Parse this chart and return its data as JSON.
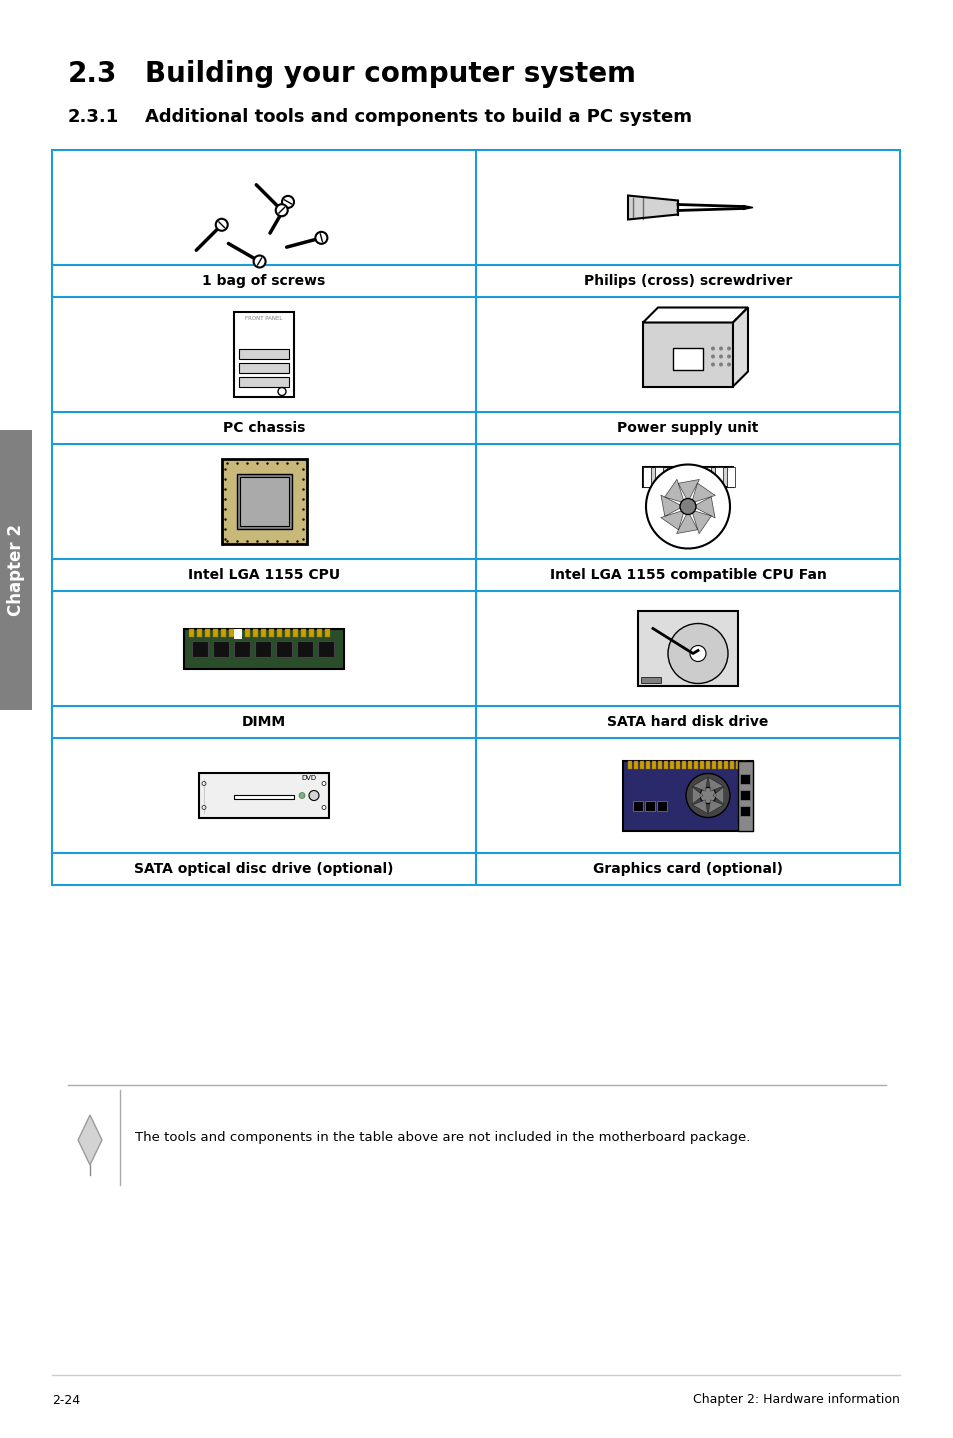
{
  "title_number": "2.3",
  "title_text": "Building your computer system",
  "subtitle_number": "2.3.1",
  "subtitle_text": "Additional tools and components to build a PC system",
  "table_border_color": "#1a9cd8",
  "table_items": [
    {
      "left_label": "1 bag of screws",
      "right_label": "Philips (cross) screwdriver"
    },
    {
      "left_label": "PC chassis",
      "right_label": "Power supply unit"
    },
    {
      "left_label": "Intel LGA 1155 CPU",
      "right_label": "Intel LGA 1155 compatible CPU Fan"
    },
    {
      "left_label": "DIMM",
      "right_label": "SATA hard disk drive"
    },
    {
      "left_label": "SATA optical disc drive (optional)",
      "right_label": "Graphics card (optional)"
    }
  ],
  "note_text": "The tools and components in the table above are not included in the motherboard package.",
  "footer_left": "2-24",
  "footer_right": "Chapter 2: Hardware information",
  "chapter_tab_text": "Chapter 2",
  "chapter_tab_color": "#808080",
  "background_color": "#ffffff",
  "title_fontsize": 20,
  "subtitle_fontsize": 13,
  "label_fontsize": 10,
  "footer_fontsize": 9
}
